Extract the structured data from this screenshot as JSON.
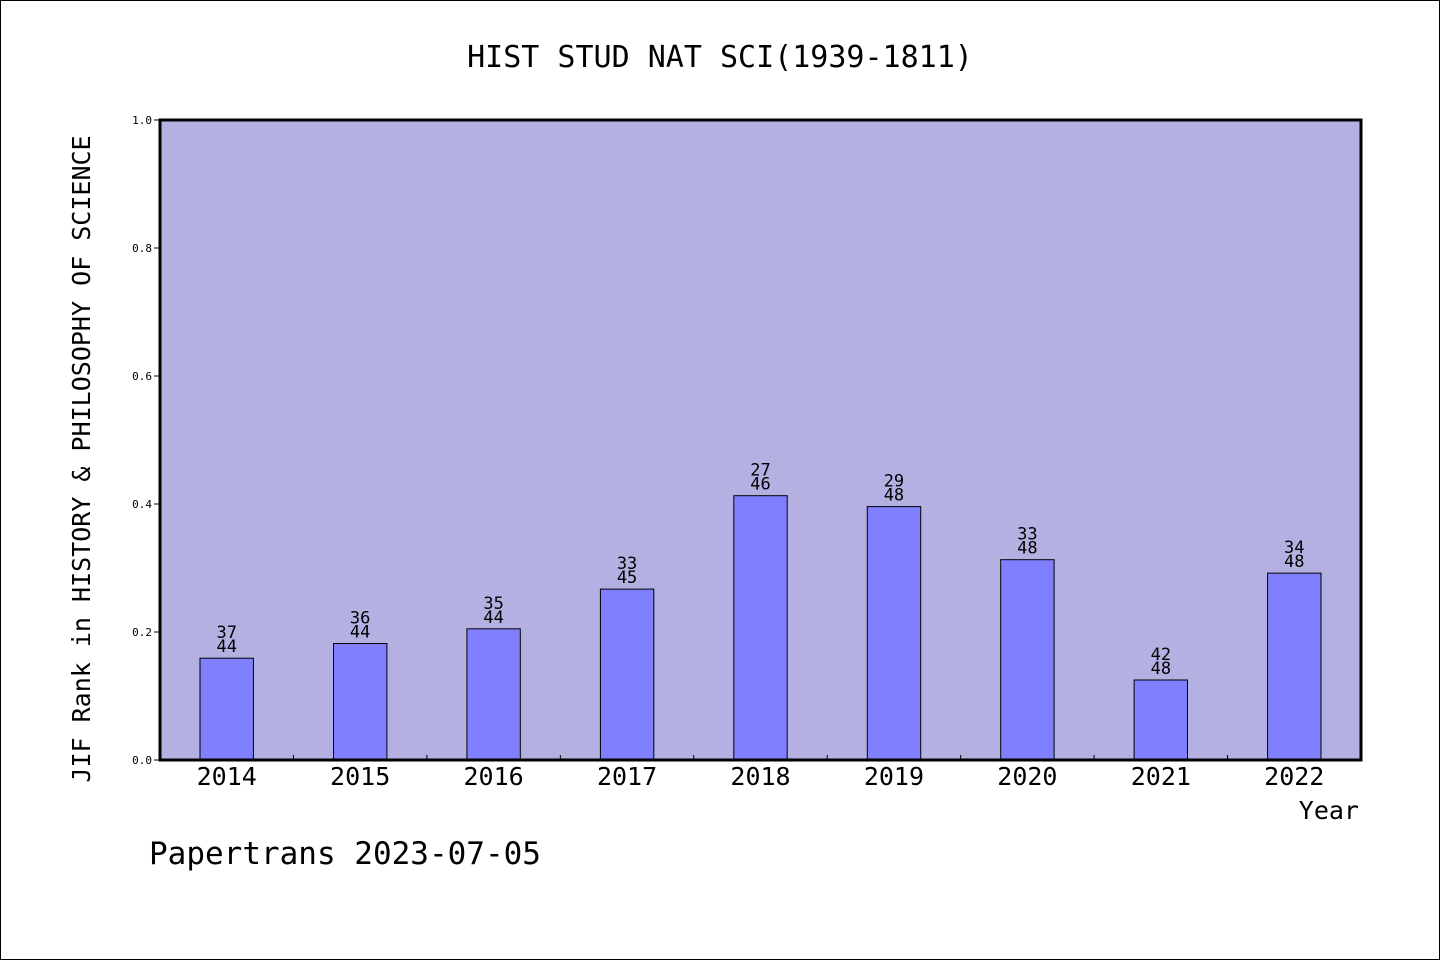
{
  "chart_data": {
    "type": "bar",
    "title": "HIST STUD NAT SCI(1939-1811)",
    "xlabel": "Year",
    "ylabel": "JIF Rank in HISTORY & PHILOSOPHY OF SCIENCE",
    "ylim": [
      0,
      1.0
    ],
    "yticks": [
      "0.0",
      "0.2",
      "0.4",
      "0.6",
      "0.8",
      "1.0"
    ],
    "categories": [
      "2014",
      "2015",
      "2016",
      "2017",
      "2018",
      "2019",
      "2020",
      "2021",
      "2022"
    ],
    "values": [
      0.159,
      0.182,
      0.205,
      0.267,
      0.413,
      0.396,
      0.313,
      0.125,
      0.292
    ],
    "bar_labels": [
      {
        "rank": "37",
        "total": "44"
      },
      {
        "rank": "36",
        "total": "44"
      },
      {
        "rank": "35",
        "total": "44"
      },
      {
        "rank": "33",
        "total": "45"
      },
      {
        "rank": "27",
        "total": "46"
      },
      {
        "rank": "29",
        "total": "48"
      },
      {
        "rank": "33",
        "total": "48"
      },
      {
        "rank": "42",
        "total": "48"
      },
      {
        "rank": "34",
        "total": "48"
      }
    ],
    "colors": {
      "plot_background": "#b5b0e2",
      "bar": "#8080ff",
      "bar_edge": "#000000"
    },
    "grid": false,
    "legend": "none"
  },
  "footer": "Papertrans 2023-07-05"
}
